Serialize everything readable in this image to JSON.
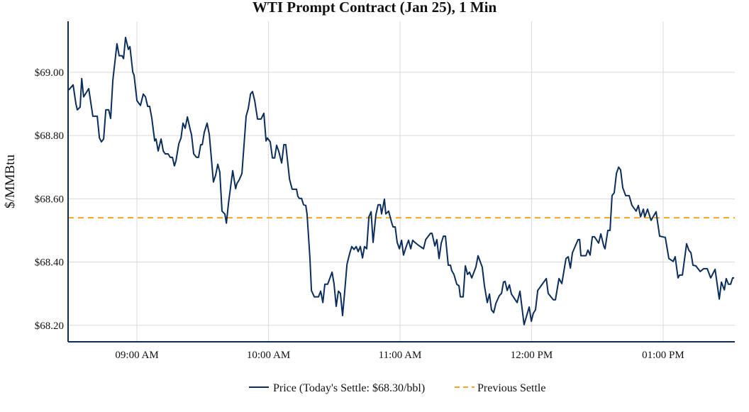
{
  "chart_data": {
    "type": "line",
    "title": "WTI Prompt Contract (Jan 25), 1 Min",
    "xlabel": "",
    "ylabel": "$/MMBtu",
    "x_units": "minutes relative to 09:00 AM",
    "xlim": [
      -31.4,
      272.7
    ],
    "ylim": [
      68.148,
      69.161
    ],
    "grid": true,
    "legend_position": "bottom-center",
    "x_ticks": [
      {
        "value": 0,
        "label": "09:00 AM"
      },
      {
        "value": 60,
        "label": "10:00 AM"
      },
      {
        "value": 120,
        "label": "11:00 AM"
      },
      {
        "value": 180,
        "label": "12:00 PM"
      },
      {
        "value": 240,
        "label": "01:00 PM"
      }
    ],
    "y_ticks": [
      {
        "value": 68.2,
        "label": "$68.20"
      },
      {
        "value": 68.4,
        "label": "$68.40"
      },
      {
        "value": 68.6,
        "label": "$68.60"
      },
      {
        "value": 68.8,
        "label": "$68.80"
      },
      {
        "value": 69.0,
        "label": "$69.00"
      }
    ],
    "series": [
      {
        "name": "Price (Today's Settle: $68.30/bbl)",
        "color": "#0b2d5b",
        "style": "solid",
        "points": [
          [
            -31.1,
            68.944
          ],
          [
            -29.1,
            68.96
          ],
          [
            -27.8,
            68.899
          ],
          [
            -27.2,
            68.881
          ],
          [
            -25.9,
            68.89
          ],
          [
            -25.2,
            68.98
          ],
          [
            -24.3,
            68.922
          ],
          [
            -22.0,
            68.948
          ],
          [
            -20.1,
            68.861
          ],
          [
            -18.1,
            68.861
          ],
          [
            -17.1,
            68.792
          ],
          [
            -16.2,
            68.78
          ],
          [
            -15.2,
            68.789
          ],
          [
            -14.2,
            68.881
          ],
          [
            -12.9,
            68.881
          ],
          [
            -12.0,
            68.854
          ],
          [
            -11.0,
            68.975
          ],
          [
            -9.1,
            69.09
          ],
          [
            -8.1,
            69.052
          ],
          [
            -6.8,
            69.052
          ],
          [
            -6.1,
            69.043
          ],
          [
            -5.2,
            69.11
          ],
          [
            -3.9,
            69.072
          ],
          [
            -3.2,
            69.081
          ],
          [
            -1.9,
            69.0
          ],
          [
            -1.3,
            68.991
          ],
          [
            0,
            68.91
          ],
          [
            1.6,
            68.895
          ],
          [
            2.9,
            68.931
          ],
          [
            3.9,
            68.922
          ],
          [
            4.9,
            68.892
          ],
          [
            5.8,
            68.892
          ],
          [
            6.8,
            68.854
          ],
          [
            8.1,
            68.783
          ],
          [
            8.7,
            68.789
          ],
          [
            9.7,
            68.751
          ],
          [
            11.0,
            68.789
          ],
          [
            12.0,
            68.751
          ],
          [
            12.9,
            68.742
          ],
          [
            14.2,
            68.742
          ],
          [
            15.2,
            68.731
          ],
          [
            16.2,
            68.731
          ],
          [
            17.1,
            68.704
          ],
          [
            17.8,
            68.72
          ],
          [
            19.1,
            68.774
          ],
          [
            20.1,
            68.792
          ],
          [
            21.0,
            68.839
          ],
          [
            22.0,
            68.823
          ],
          [
            23.0,
            68.859
          ],
          [
            24.3,
            68.818
          ],
          [
            24.9,
            68.803
          ],
          [
            25.9,
            68.742
          ],
          [
            27.2,
            68.731
          ],
          [
            28.1,
            68.731
          ],
          [
            29.1,
            68.771
          ],
          [
            29.8,
            68.771
          ],
          [
            30.7,
            68.81
          ],
          [
            32.0,
            68.839
          ],
          [
            33.0,
            68.803
          ],
          [
            34.9,
            68.653
          ],
          [
            35.9,
            68.675
          ],
          [
            36.9,
            68.709
          ],
          [
            37.8,
            68.684
          ],
          [
            38.8,
            68.561
          ],
          [
            40.1,
            68.552
          ],
          [
            40.8,
            68.523
          ],
          [
            41.7,
            68.583
          ],
          [
            43.0,
            68.653
          ],
          [
            43.7,
            68.689
          ],
          [
            45.0,
            68.632
          ],
          [
            45.6,
            68.648
          ],
          [
            46.6,
            68.659
          ],
          [
            47.9,
            68.68
          ],
          [
            49.8,
            68.861
          ],
          [
            50.8,
            68.886
          ],
          [
            51.8,
            68.931
          ],
          [
            52.7,
            68.939
          ],
          [
            53.7,
            68.91
          ],
          [
            55.0,
            68.852
          ],
          [
            56.6,
            68.852
          ],
          [
            57.9,
            68.87
          ],
          [
            58.9,
            68.783
          ],
          [
            59.5,
            68.792
          ],
          [
            60.8,
            68.78
          ],
          [
            61.8,
            68.729
          ],
          [
            62.8,
            68.729
          ],
          [
            63.7,
            68.769
          ],
          [
            64.7,
            68.749
          ],
          [
            66.0,
            68.713
          ],
          [
            67.0,
            68.771
          ],
          [
            67.9,
            68.771
          ],
          [
            69.6,
            68.662
          ],
          [
            70.8,
            68.63
          ],
          [
            72.8,
            68.63
          ],
          [
            73.4,
            68.608
          ],
          [
            74.1,
            68.601
          ],
          [
            75.1,
            68.601
          ],
          [
            76.0,
            68.581
          ],
          [
            77.0,
            68.579
          ],
          [
            77.6,
            68.552
          ],
          [
            78.9,
            68.415
          ],
          [
            79.6,
            68.31
          ],
          [
            80.9,
            68.29
          ],
          [
            82.8,
            68.29
          ],
          [
            83.8,
            68.308
          ],
          [
            84.8,
            68.272
          ],
          [
            85.7,
            68.33
          ],
          [
            87.0,
            68.33
          ],
          [
            89.0,
            68.368
          ],
          [
            89.9,
            68.332
          ],
          [
            90.9,
            68.26
          ],
          [
            91.9,
            68.308
          ],
          [
            92.8,
            68.301
          ],
          [
            93.8,
            68.231
          ],
          [
            94.8,
            68.31
          ],
          [
            95.8,
            68.393
          ],
          [
            97.1,
            68.429
          ],
          [
            98.0,
            68.449
          ],
          [
            99.0,
            68.44
          ],
          [
            100.0,
            68.449
          ],
          [
            100.9,
            68.433
          ],
          [
            101.9,
            68.449
          ],
          [
            102.9,
            68.413
          ],
          [
            103.8,
            68.449
          ],
          [
            104.8,
            68.442
          ],
          [
            105.8,
            68.543
          ],
          [
            106.8,
            68.559
          ],
          [
            107.7,
            68.462
          ],
          [
            109.0,
            68.55
          ],
          [
            110.0,
            68.581
          ],
          [
            111.0,
            68.581
          ],
          [
            111.6,
            68.552
          ],
          [
            112.9,
            68.599
          ],
          [
            113.5,
            68.552
          ],
          [
            114.8,
            68.561
          ],
          [
            116.1,
            68.527
          ],
          [
            116.8,
            68.511
          ],
          [
            117.8,
            68.511
          ],
          [
            118.7,
            68.462
          ],
          [
            119.7,
            68.442
          ],
          [
            120.7,
            68.469
          ],
          [
            121.6,
            68.422
          ],
          [
            122.9,
            68.451
          ],
          [
            123.9,
            68.469
          ],
          [
            124.9,
            68.442
          ],
          [
            125.8,
            68.469
          ],
          [
            126.8,
            68.462
          ],
          [
            128.4,
            68.453
          ],
          [
            130.7,
            68.442
          ],
          [
            131.7,
            68.471
          ],
          [
            133.9,
            68.491
          ],
          [
            134.6,
            68.491
          ],
          [
            135.9,
            68.451
          ],
          [
            136.8,
            68.471
          ],
          [
            137.8,
            68.411
          ],
          [
            138.8,
            68.46
          ],
          [
            139.8,
            68.482
          ],
          [
            140.7,
            68.482
          ],
          [
            142.0,
            68.39
          ],
          [
            143.0,
            68.39
          ],
          [
            143.6,
            68.373
          ],
          [
            144.6,
            68.361
          ],
          [
            145.9,
            68.33
          ],
          [
            146.9,
            68.325
          ],
          [
            147.5,
            68.29
          ],
          [
            148.8,
            68.29
          ],
          [
            149.8,
            68.388
          ],
          [
            150.8,
            68.361
          ],
          [
            151.7,
            68.368
          ],
          [
            152.7,
            68.35
          ],
          [
            153.7,
            68.368
          ],
          [
            154.6,
            68.384
          ],
          [
            155.6,
            68.42
          ],
          [
            157.5,
            68.384
          ],
          [
            158.5,
            68.325
          ],
          [
            159.8,
            68.272
          ],
          [
            160.8,
            68.299
          ],
          [
            161.7,
            68.249
          ],
          [
            162.7,
            68.24
          ],
          [
            163.7,
            68.269
          ],
          [
            165.3,
            68.294
          ],
          [
            166.3,
            68.301
          ],
          [
            167.2,
            68.337
          ],
          [
            167.9,
            68.339
          ],
          [
            168.9,
            68.31
          ],
          [
            169.9,
            68.328
          ],
          [
            170.8,
            68.299
          ],
          [
            173.4,
            68.272
          ],
          [
            174.7,
            68.308
          ],
          [
            176.6,
            68.202
          ],
          [
            178.9,
            68.258
          ],
          [
            179.9,
            68.213
          ],
          [
            180.8,
            68.238
          ],
          [
            181.8,
            68.249
          ],
          [
            182.8,
            68.31
          ],
          [
            186.7,
            68.348
          ],
          [
            187.6,
            68.301
          ],
          [
            189.9,
            68.281
          ],
          [
            190.9,
            68.281
          ],
          [
            192.5,
            68.348
          ],
          [
            193.8,
            68.332
          ],
          [
            195.7,
            68.411
          ],
          [
            196.7,
            68.417
          ],
          [
            197.7,
            68.381
          ],
          [
            198.6,
            68.429
          ],
          [
            201.2,
            68.471
          ],
          [
            201.9,
            68.471
          ],
          [
            202.5,
            68.42
          ],
          [
            204.8,
            68.42
          ],
          [
            205.7,
            68.438
          ],
          [
            206.7,
            68.422
          ],
          [
            207.7,
            68.48
          ],
          [
            208.7,
            68.48
          ],
          [
            210.6,
            68.46
          ],
          [
            211.6,
            68.489
          ],
          [
            212.9,
            68.451
          ],
          [
            213.5,
            68.442
          ],
          [
            214.8,
            68.5
          ],
          [
            215.8,
            68.5
          ],
          [
            216.7,
            68.61
          ],
          [
            217.7,
            68.619
          ],
          [
            218.7,
            68.68
          ],
          [
            219.7,
            68.7
          ],
          [
            220.6,
            68.691
          ],
          [
            221.6,
            68.635
          ],
          [
            222.9,
            68.61
          ],
          [
            224.5,
            68.61
          ],
          [
            225.8,
            68.579
          ],
          [
            227.7,
            68.561
          ],
          [
            228.7,
            68.579
          ],
          [
            229.7,
            68.543
          ],
          [
            231.0,
            68.567
          ],
          [
            231.6,
            68.543
          ],
          [
            232.9,
            68.567
          ],
          [
            234.5,
            68.532
          ],
          [
            236.8,
            68.559
          ],
          [
            238.4,
            68.482
          ],
          [
            241.0,
            68.478
          ],
          [
            242.6,
            68.411
          ],
          [
            244.6,
            68.402
          ],
          [
            245.5,
            68.417
          ],
          [
            246.8,
            68.35
          ],
          [
            247.5,
            68.359
          ],
          [
            248.8,
            68.359
          ],
          [
            250.7,
            68.458
          ],
          [
            251.7,
            68.438
          ],
          [
            252.7,
            68.429
          ],
          [
            253.6,
            68.39
          ],
          [
            254.9,
            68.388
          ],
          [
            256.9,
            68.37
          ],
          [
            258.5,
            68.379
          ],
          [
            260.1,
            68.379
          ],
          [
            261.7,
            68.35
          ],
          [
            263.7,
            68.377
          ],
          [
            265.6,
            68.283
          ],
          [
            266.6,
            68.337
          ],
          [
            267.9,
            68.312
          ],
          [
            268.8,
            68.348
          ],
          [
            269.8,
            68.33
          ],
          [
            270.8,
            68.33
          ],
          [
            271.7,
            68.35
          ],
          [
            272.4,
            68.35
          ]
        ]
      },
      {
        "name": "Previous Settle",
        "color": "#f5a623",
        "style": "dashed",
        "value": 68.54
      }
    ]
  }
}
